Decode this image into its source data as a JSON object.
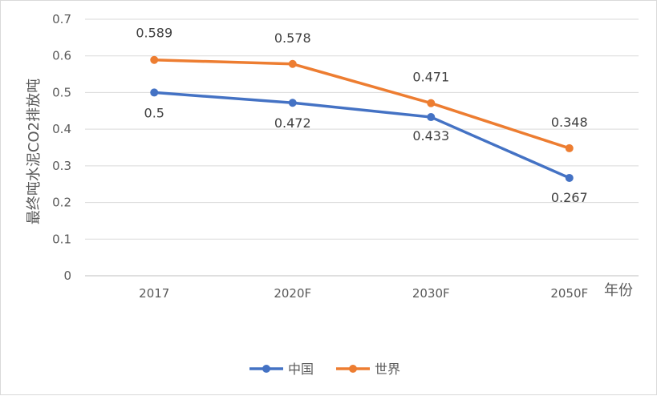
{
  "chart_data": {
    "type": "line",
    "categories": [
      "2017",
      "2020F",
      "2030F",
      "2050F"
    ],
    "series": [
      {
        "name": "中国",
        "color": "#4472C4",
        "values": [
          0.5,
          0.472,
          0.433,
          0.267
        ],
        "labels": [
          "0.5",
          "0.472",
          "0.433",
          "0.267"
        ]
      },
      {
        "name": "世界",
        "color": "#ED7D31",
        "values": [
          0.589,
          0.578,
          0.471,
          0.348
        ],
        "labels": [
          "0.589",
          "0.578",
          "0.471",
          "0.348"
        ]
      }
    ],
    "ylabel": "最终吨水泥CO2排放吨",
    "xlabel": "年份",
    "ylim": [
      0,
      0.7
    ],
    "yticks": [
      "0",
      "0.1",
      "0.2",
      "0.3",
      "0.4",
      "0.5",
      "0.6",
      "0.7"
    ],
    "grid": true,
    "legend_position": "bottom"
  }
}
